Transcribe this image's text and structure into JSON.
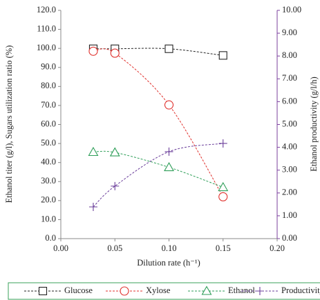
{
  "chart_data": {
    "type": "line",
    "x_label": "Dilution rate  (h⁻¹)",
    "y_label": "Ethanol titer (g/l), Sugars utilization ratio (%)",
    "y2_label": "Ethanol productivity (g/l/h)",
    "x": [
      0.03,
      0.05,
      0.1,
      0.15
    ],
    "xlim": [
      0,
      0.2
    ],
    "xticks": [
      {
        "value": 0,
        "label": "0.00"
      },
      {
        "value": 0.05,
        "label": "0.05"
      },
      {
        "value": 0.1,
        "label": "0.10"
      },
      {
        "value": 0.15,
        "label": "0.15"
      },
      {
        "value": 0.2,
        "label": "0.20"
      }
    ],
    "ylim": [
      0,
      120
    ],
    "yticks": [
      {
        "value": 0,
        "label": "0.0"
      },
      {
        "value": 10,
        "label": "10.0"
      },
      {
        "value": 20,
        "label": "20.0"
      },
      {
        "value": 30,
        "label": "30.0"
      },
      {
        "value": 40,
        "label": "40.0"
      },
      {
        "value": 50,
        "label": "50.0"
      },
      {
        "value": 60,
        "label": "60.0"
      },
      {
        "value": 70,
        "label": "70.0"
      },
      {
        "value": 80,
        "label": "80.0"
      },
      {
        "value": 90,
        "label": "90.0"
      },
      {
        "value": 100,
        "label": "100.0"
      },
      {
        "value": 110,
        "label": "110.0"
      },
      {
        "value": 120,
        "label": "120.0"
      }
    ],
    "y2lim": [
      0,
      10
    ],
    "y2ticks": [
      {
        "value": 0,
        "label": "0.00"
      },
      {
        "value": 1,
        "label": "1.00"
      },
      {
        "value": 2,
        "label": "2.00"
      },
      {
        "value": 3,
        "label": "3.00"
      },
      {
        "value": 4,
        "label": "4.00"
      },
      {
        "value": 5,
        "label": "5.00"
      },
      {
        "value": 6,
        "label": "6.00"
      },
      {
        "value": 7,
        "label": "7.00"
      },
      {
        "value": 8,
        "label": "8.00"
      },
      {
        "value": 9,
        "label": "9.00"
      },
      {
        "value": 10,
        "label": "10.00"
      }
    ],
    "y2_color": "#7b3f9e",
    "legend": "bottom",
    "series": [
      {
        "name": "Glucose",
        "color": "#222222",
        "marker": "square",
        "values": [
          99.8,
          99.8,
          99.8,
          96.3
        ]
      },
      {
        "name": "Xylose",
        "color": "#e0302c",
        "marker": "circle",
        "values": [
          98.5,
          97.5,
          70.3,
          22.0
        ]
      },
      {
        "name": "Ethanol",
        "color": "#2e9e58",
        "marker": "triangle",
        "values": [
          45.5,
          45.3,
          37.5,
          27.0
        ]
      },
      {
        "name": "Productivity",
        "color": "#6a3d9a",
        "marker": "plus",
        "axis": "y2",
        "values": [
          1.39,
          2.3,
          3.81,
          4.17
        ]
      }
    ]
  }
}
